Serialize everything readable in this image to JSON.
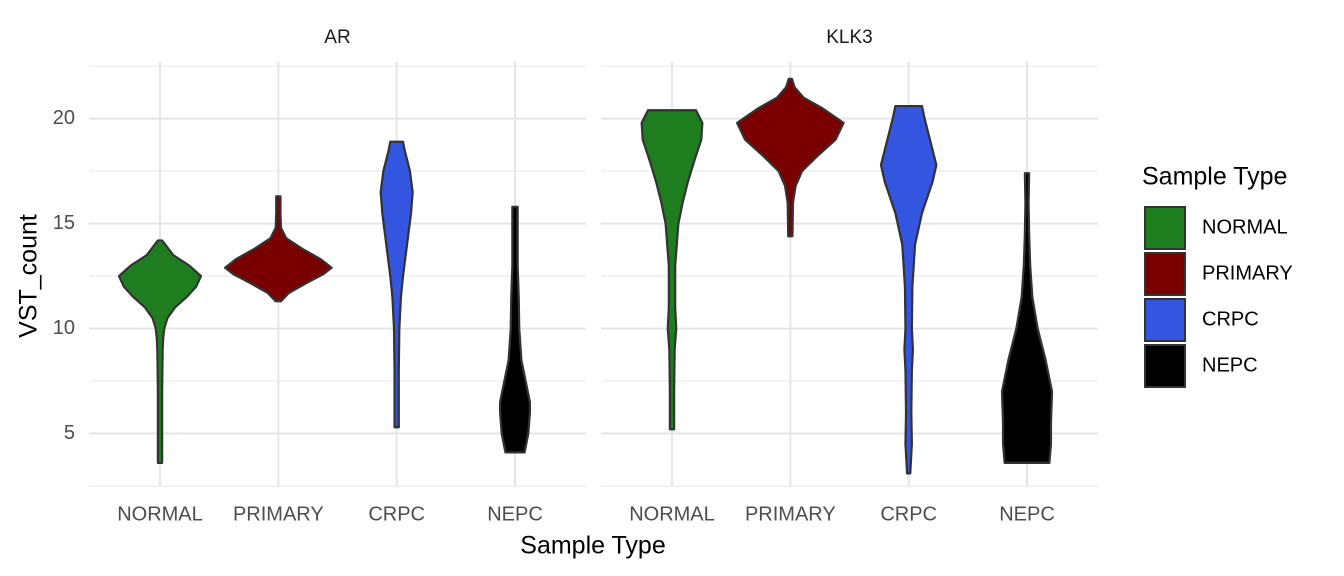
{
  "chart_data": [
    {
      "type": "violin",
      "title": "AR",
      "categories": [
        "NORMAL",
        "PRIMARY",
        "CRPC",
        "NEPC"
      ],
      "ylim": [
        2.5,
        22.7
      ],
      "yticks": [
        5,
        10,
        15,
        20
      ],
      "grid": true,
      "series": [
        {
          "name": "NORMAL",
          "color": "#1e7d1e",
          "y": [
            3.6,
            5,
            7,
            9,
            9.5,
            10,
            10.5,
            11,
            11.5,
            12,
            12.5,
            13,
            13.5,
            14,
            14.2
          ],
          "density": [
            0.04,
            0.04,
            0.04,
            0.05,
            0.06,
            0.08,
            0.14,
            0.28,
            0.5,
            0.68,
            0.77,
            0.55,
            0.25,
            0.1,
            0.04
          ]
        },
        {
          "name": "PRIMARY",
          "color": "#7a0000",
          "y": [
            11.3,
            11.7,
            12.2,
            12.6,
            12.9,
            13.3,
            13.8,
            14.3,
            14.8,
            15.5,
            16.3
          ],
          "density": [
            0.05,
            0.2,
            0.55,
            0.85,
            1.0,
            0.8,
            0.45,
            0.15,
            0.05,
            0.04,
            0.04
          ]
        },
        {
          "name": "CRPC",
          "color": "#3355e0",
          "y": [
            5.3,
            8,
            10,
            11.5,
            12.5,
            13.5,
            14.5,
            15.5,
            16.5,
            17.5,
            18.5,
            18.9
          ],
          "density": [
            0.04,
            0.04,
            0.05,
            0.08,
            0.12,
            0.17,
            0.22,
            0.27,
            0.3,
            0.25,
            0.15,
            0.12
          ]
        },
        {
          "name": "NEPC",
          "color": "#000000",
          "y": [
            4.1,
            5,
            6,
            6.5,
            7.5,
            8.5,
            10,
            11.5,
            13,
            14.5,
            15.8
          ],
          "density": [
            0.18,
            0.25,
            0.28,
            0.28,
            0.2,
            0.12,
            0.08,
            0.07,
            0.05,
            0.05,
            0.05
          ]
        }
      ]
    },
    {
      "type": "violin",
      "title": "KLK3",
      "categories": [
        "NORMAL",
        "PRIMARY",
        "CRPC",
        "NEPC"
      ],
      "ylim": [
        2.5,
        22.7
      ],
      "yticks": [
        5,
        10,
        15,
        20
      ],
      "grid": true,
      "series": [
        {
          "name": "NORMAL",
          "color": "#1e7d1e",
          "y": [
            5.2,
            7,
            9,
            10,
            11,
            13,
            15,
            16,
            17,
            18,
            19,
            19.8,
            20.4
          ],
          "density": [
            0.04,
            0.04,
            0.05,
            0.08,
            0.06,
            0.06,
            0.12,
            0.2,
            0.3,
            0.42,
            0.55,
            0.57,
            0.45
          ]
        },
        {
          "name": "PRIMARY",
          "color": "#7a0000",
          "y": [
            14.4,
            16,
            16.8,
            17.5,
            18.2,
            19,
            19.8,
            20.5,
            21,
            21.5,
            21.9
          ],
          "density": [
            0.04,
            0.05,
            0.1,
            0.22,
            0.5,
            0.85,
            1.0,
            0.6,
            0.25,
            0.08,
            0.03
          ]
        },
        {
          "name": "CRPC",
          "color": "#3355e0",
          "y": [
            3.1,
            4.5,
            6,
            8,
            9,
            10,
            12,
            14,
            15.5,
            17,
            17.8,
            19,
            20,
            20.6
          ],
          "density": [
            0.03,
            0.06,
            0.05,
            0.06,
            0.08,
            0.06,
            0.07,
            0.12,
            0.25,
            0.45,
            0.52,
            0.4,
            0.3,
            0.25
          ]
        },
        {
          "name": "NEPC",
          "color": "#000000",
          "y": [
            3.6,
            4.5,
            5.5,
            7,
            8.5,
            10,
            11.5,
            13,
            14.5,
            16,
            17.4
          ],
          "density": [
            0.42,
            0.45,
            0.45,
            0.47,
            0.35,
            0.2,
            0.1,
            0.06,
            0.04,
            0.03,
            0.04
          ]
        }
      ]
    }
  ],
  "x_label": "Sample Type",
  "y_label": "VST_count",
  "legend_title": "Sample Type"
}
